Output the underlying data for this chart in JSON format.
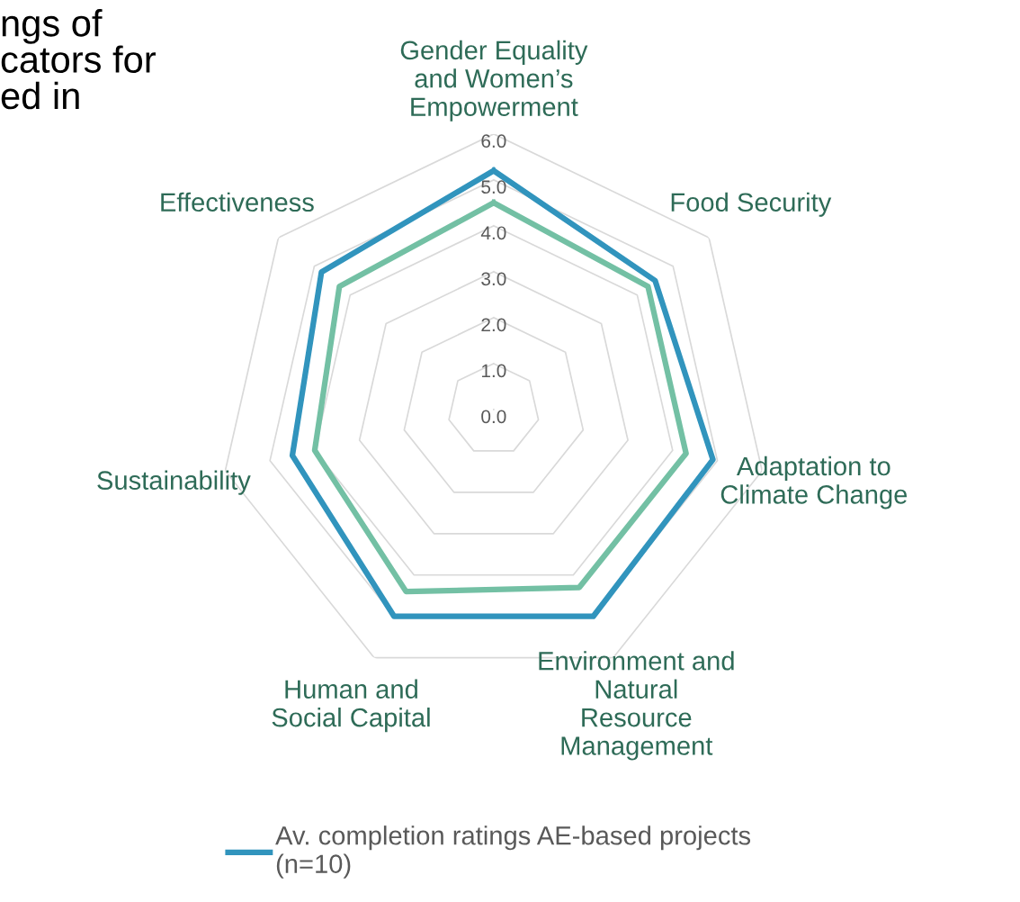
{
  "chart_data": {
    "type": "radar",
    "annotations": [
      "ngs of\ncators for\ned in"
    ],
    "categories": [
      "Gender Equality\nand Women’s\nEmpowerment",
      "Food Security",
      "Adaptation to\nClimate Change",
      "Environment and\nNatural\nResource\nManagement",
      "Human and\nSocial Capital",
      "Sustainability",
      "Effectiveness"
    ],
    "series": [
      {
        "name": "Av. completion ratings AE-based projects\n(n=10)",
        "color": "#3194bd",
        "values": [
          5.2,
          4.5,
          4.9,
          5.0,
          5.0,
          4.5,
          4.8
        ]
      },
      {
        "color": "#73c0a4",
        "values": [
          4.5,
          4.3,
          4.3,
          4.3,
          4.4,
          4.0,
          4.3
        ]
      }
    ],
    "ylim": [
      0,
      6
    ],
    "yticks": [
      {
        "value": 0,
        "label": "0.0"
      },
      {
        "value": 1,
        "label": "1.0"
      },
      {
        "value": 2,
        "label": "2.0"
      },
      {
        "value": 3,
        "label": "3.0"
      },
      {
        "value": 4,
        "label": "4.0"
      },
      {
        "value": 5,
        "label": "5.0"
      },
      {
        "value": 6,
        "label": "6.0"
      }
    ],
    "grid": true,
    "legend": "bottom"
  }
}
